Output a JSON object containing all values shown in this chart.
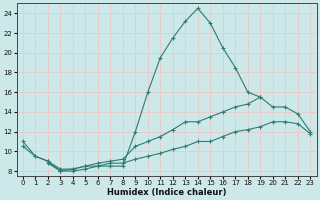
{
  "xlabel": "Humidex (Indice chaleur)",
  "background_color": "#cce8e8",
  "grid_color": "#e8c8c8",
  "line_color": "#2d7d72",
  "x_min": 0,
  "x_max": 23,
  "y_min": 7.5,
  "y_max": 25,
  "series1_x": [
    0,
    1,
    2,
    3,
    4,
    5,
    6,
    7,
    8,
    9,
    10,
    11,
    12,
    13,
    14,
    15,
    16,
    17,
    18,
    19
  ],
  "series1_y": [
    11,
    9.5,
    9,
    8,
    8.2,
    8.5,
    8.5,
    8.5,
    8.5,
    12,
    16,
    19.5,
    21.5,
    23.2,
    24.5,
    23,
    20.5,
    18.5,
    16,
    15.5
  ],
  "series2_x": [
    0,
    1,
    2,
    3,
    4,
    5,
    6,
    7,
    8,
    9,
    10,
    11,
    12,
    13,
    14,
    15,
    16,
    17,
    18,
    19,
    20,
    21,
    22,
    23
  ],
  "series2_y": [
    10.5,
    9.5,
    9,
    8.2,
    8.2,
    8.5,
    8.8,
    9,
    9.2,
    10.5,
    11,
    11.5,
    12.2,
    13,
    13,
    13.5,
    14,
    14.5,
    14.8,
    15.5,
    14.5,
    14.5,
    13.8,
    12
  ],
  "series3_x": [
    2,
    3,
    4,
    5,
    6,
    7,
    8,
    9,
    10,
    11,
    12,
    13,
    14,
    15,
    16,
    17,
    18,
    19,
    20,
    21,
    22,
    23
  ],
  "series3_y": [
    8.8,
    8.0,
    8.0,
    8.2,
    8.5,
    8.8,
    8.8,
    9.2,
    9.5,
    9.8,
    10.2,
    10.5,
    11,
    11,
    11.5,
    12,
    12.2,
    12.5,
    13,
    13,
    12.8,
    11.8
  ]
}
